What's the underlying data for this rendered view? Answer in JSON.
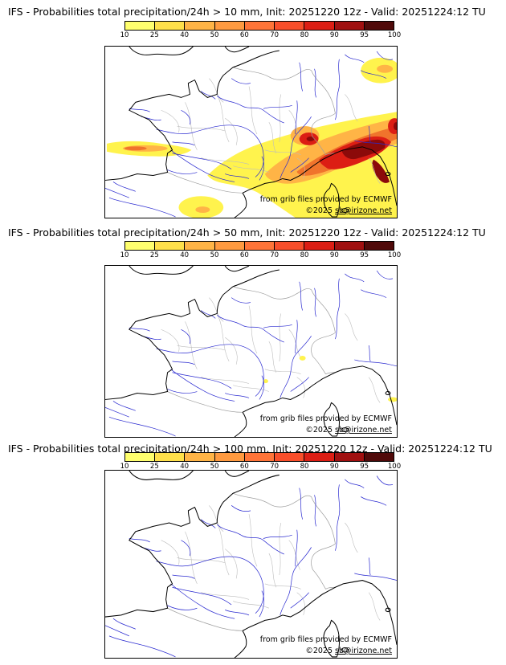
{
  "panels": [
    {
      "title": "IFS - Probabilities total precipitation/24h > 10 mm, Init: 20251220 12z - Valid: 20251224:12 TU"
    },
    {
      "title": "IFS - Probabilities total precipitation/24h > 50 mm, Init: 20251220 12z - Valid: 20251224:12 TU"
    },
    {
      "title": "IFS - Probabilities total precipitation/24h > 100 mm, Init: 20251220 12z - Valid: 20251224:12 TU"
    }
  ],
  "colorbar": {
    "tick_labels": [
      "10",
      "25",
      "40",
      "50",
      "60",
      "70",
      "80",
      "90",
      "95",
      "100"
    ],
    "segment_colors": [
      "#FFFF6E",
      "#FFE04A",
      "#FFB446",
      "#FF9A40",
      "#FF7438",
      "#F84E2A",
      "#DC1E14",
      "#A01010",
      "#500A0A"
    ]
  },
  "map": {
    "credit_provider": "from grib files provided by ECMWF",
    "credit_copyright": "©2025 ",
    "credit_link": "sb@irizone.net",
    "colors": {
      "coastline": "#000000",
      "river": "#2A2AD0",
      "department_border": "#BDBDBD",
      "country_border": "#9E9E9E",
      "frame": "#000000"
    }
  }
}
